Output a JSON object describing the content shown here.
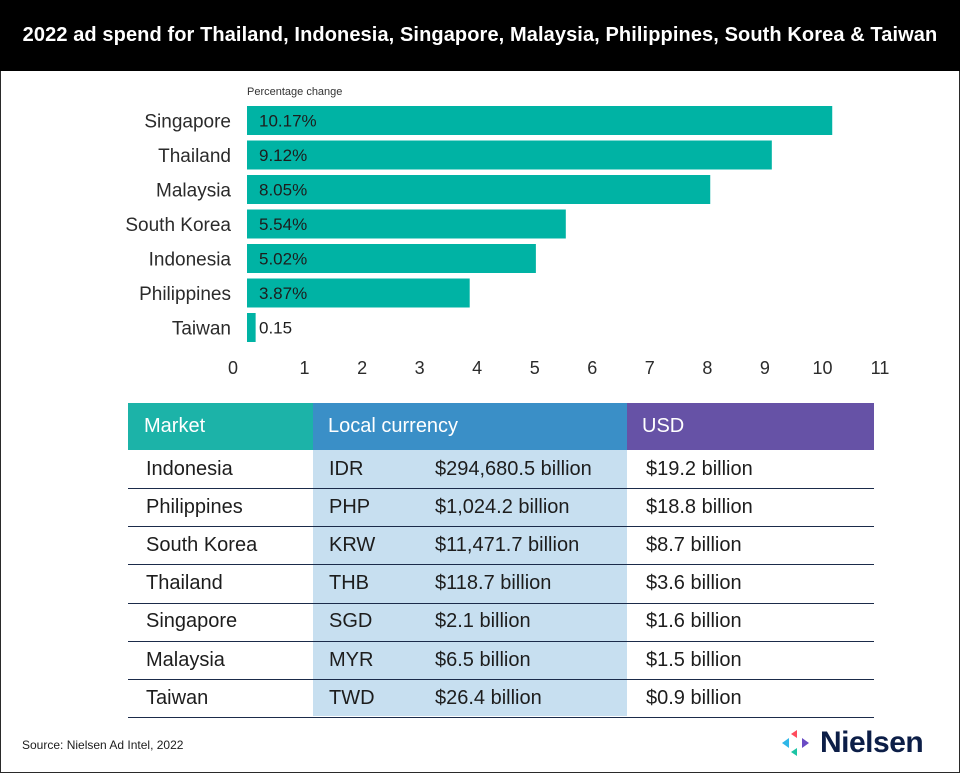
{
  "title": "2022 ad spend for Thailand, Indonesia, Singapore, Malaysia, Philippines, South Korea & Taiwan",
  "chart_data": {
    "type": "bar",
    "orientation": "horizontal",
    "axis_caption": "Percentage change",
    "categories": [
      "Singapore",
      "Thailand",
      "Malaysia",
      "South Korea",
      "Indonesia",
      "Philippines",
      "Taiwan"
    ],
    "values": [
      10.17,
      9.12,
      8.05,
      5.54,
      5.02,
      3.87,
      0.15
    ],
    "value_labels": [
      "10.17%",
      "9.12%",
      "8.05%",
      "5.54%",
      "5.02%",
      "3.87%",
      "0.15"
    ],
    "xlim": [
      0,
      11
    ],
    "xticks": [
      "0",
      "1",
      "2",
      "3",
      "4",
      "5",
      "6",
      "7",
      "8",
      "9",
      "10",
      "11"
    ],
    "bar_color": "#00b3a4",
    "grid": false
  },
  "table": {
    "headers": {
      "market": "Market",
      "local": "Local currency",
      "usd": "USD"
    },
    "header_colors": {
      "market": "#1cb3a8",
      "local": "#3a8fc7",
      "usd": "#6652a6"
    },
    "shade_colors": {
      "local": "#c7dff0"
    },
    "rows": [
      {
        "market": "Indonesia",
        "code": "IDR",
        "local": "$294,680.5 billion",
        "usd": "$19.2 billion"
      },
      {
        "market": "Philippines",
        "code": "PHP",
        "local": "$1,024.2 billion",
        "usd": "$18.8 billion"
      },
      {
        "market": "South Korea",
        "code": "KRW",
        "local": "$11,471.7 billion",
        "usd": "$8.7 billion"
      },
      {
        "market": "Thailand",
        "code": "THB",
        "local": "$118.7 billion",
        "usd": "$3.6 billion"
      },
      {
        "market": "Singapore",
        "code": "SGD",
        "local": "$2.1 billion",
        "usd": "$1.6 billion"
      },
      {
        "market": "Malaysia",
        "code": "MYR",
        "local": "$6.5 billion",
        "usd": "$1.5 billion"
      },
      {
        "market": "Taiwan",
        "code": "TWD",
        "local": "$26.4 billion",
        "usd": "$0.9 billion"
      }
    ]
  },
  "footer": {
    "source": "Source: Nielsen Ad Intel, 2022"
  },
  "logo": {
    "text": "Nielsen",
    "icon": "nielsen-logo-icon"
  }
}
